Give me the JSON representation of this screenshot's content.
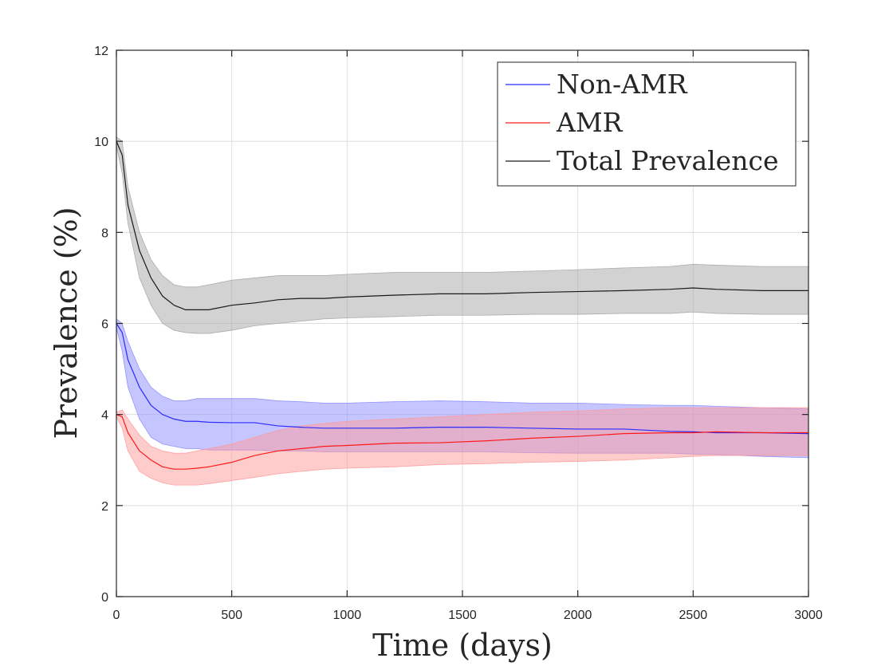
{
  "chart_data": {
    "type": "line",
    "xlabel": "Time (days)",
    "ylabel": "Prevalence (%)",
    "xlim": [
      0,
      3000
    ],
    "ylim": [
      0,
      12
    ],
    "xticks": [
      "0",
      "500",
      "1000",
      "1500",
      "2000",
      "2500",
      "3000"
    ],
    "yticks": [
      "0",
      "2",
      "4",
      "6",
      "8",
      "10",
      "12"
    ],
    "grid": true,
    "legend_position": "top-right",
    "x": [
      0,
      25,
      50,
      100,
      150,
      200,
      250,
      300,
      350,
      400,
      500,
      600,
      700,
      800,
      900,
      1000,
      1200,
      1400,
      1600,
      1800,
      2000,
      2200,
      2400,
      2500,
      2600,
      2800,
      3000
    ],
    "series": [
      {
        "name": "Non-AMR",
        "color": "#2b2bff",
        "band_color": "#8c8cff",
        "mean": [
          6.0,
          5.8,
          5.2,
          4.6,
          4.2,
          4.0,
          3.9,
          3.85,
          3.85,
          3.83,
          3.82,
          3.82,
          3.75,
          3.72,
          3.7,
          3.7,
          3.7,
          3.72,
          3.72,
          3.7,
          3.68,
          3.68,
          3.63,
          3.62,
          3.6,
          3.6,
          3.58
        ],
        "lower": [
          5.9,
          5.4,
          4.6,
          3.9,
          3.5,
          3.35,
          3.3,
          3.25,
          3.25,
          3.22,
          3.22,
          3.22,
          3.2,
          3.2,
          3.18,
          3.18,
          3.18,
          3.18,
          3.18,
          3.16,
          3.15,
          3.15,
          3.15,
          3.13,
          3.12,
          3.08,
          3.05
        ],
        "upper": [
          6.1,
          6.0,
          5.6,
          5.0,
          4.6,
          4.4,
          4.3,
          4.3,
          4.35,
          4.35,
          4.35,
          4.35,
          4.3,
          4.28,
          4.25,
          4.25,
          4.28,
          4.3,
          4.28,
          4.25,
          4.25,
          4.22,
          4.2,
          4.2,
          4.18,
          4.15,
          4.12
        ]
      },
      {
        "name": "AMR",
        "color": "#ff1a1a",
        "band_color": "#ff9a9a",
        "mean": [
          4.0,
          3.95,
          3.6,
          3.2,
          3.0,
          2.85,
          2.8,
          2.8,
          2.82,
          2.85,
          2.95,
          3.1,
          3.2,
          3.25,
          3.3,
          3.32,
          3.37,
          3.38,
          3.42,
          3.48,
          3.52,
          3.58,
          3.6,
          3.6,
          3.62,
          3.6,
          3.6
        ],
        "lower": [
          3.95,
          3.7,
          3.2,
          2.75,
          2.6,
          2.5,
          2.45,
          2.45,
          2.45,
          2.48,
          2.55,
          2.62,
          2.7,
          2.75,
          2.8,
          2.82,
          2.85,
          2.9,
          2.92,
          2.95,
          2.97,
          3.0,
          3.05,
          3.08,
          3.1,
          3.1,
          3.1
        ],
        "upper": [
          4.05,
          4.1,
          3.9,
          3.55,
          3.3,
          3.2,
          3.15,
          3.15,
          3.2,
          3.25,
          3.35,
          3.5,
          3.65,
          3.75,
          3.8,
          3.85,
          3.9,
          3.95,
          4.0,
          4.05,
          4.08,
          4.12,
          4.15,
          4.15,
          4.15,
          4.15,
          4.15
        ]
      },
      {
        "name": "Total Prevalence",
        "color": "#1a1a1a",
        "band_color": "#a6a6a6",
        "mean": [
          10.0,
          9.7,
          8.6,
          7.6,
          7.0,
          6.6,
          6.4,
          6.3,
          6.3,
          6.3,
          6.4,
          6.45,
          6.52,
          6.55,
          6.55,
          6.58,
          6.62,
          6.65,
          6.65,
          6.68,
          6.7,
          6.72,
          6.75,
          6.78,
          6.75,
          6.72,
          6.72
        ],
        "lower": [
          9.9,
          9.3,
          8.2,
          7.0,
          6.4,
          6.0,
          5.85,
          5.8,
          5.78,
          5.78,
          5.85,
          5.95,
          6.0,
          6.05,
          6.1,
          6.12,
          6.15,
          6.18,
          6.18,
          6.2,
          6.2,
          6.22,
          6.22,
          6.25,
          6.22,
          6.2,
          6.2
        ],
        "upper": [
          10.1,
          10.0,
          9.0,
          8.0,
          7.4,
          7.05,
          6.85,
          6.8,
          6.8,
          6.85,
          6.95,
          7.0,
          7.05,
          7.05,
          7.05,
          7.08,
          7.12,
          7.12,
          7.12,
          7.15,
          7.18,
          7.22,
          7.25,
          7.3,
          7.28,
          7.25,
          7.25
        ]
      }
    ]
  }
}
